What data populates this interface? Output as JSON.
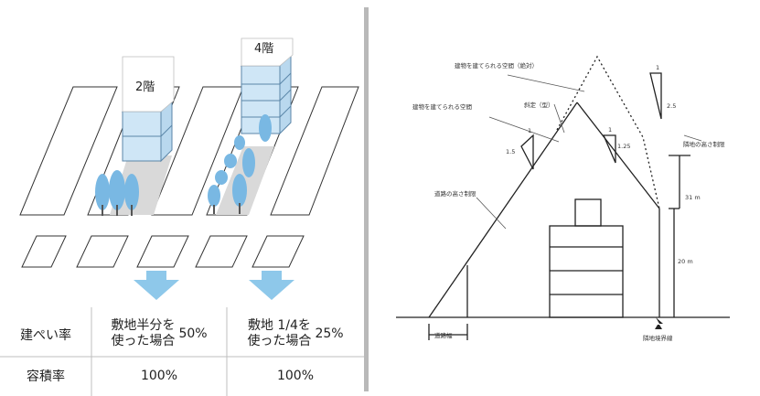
{
  "left_diagram": {
    "building_a_label": "2階",
    "building_b_label": "4階",
    "colors": {
      "building": "#cfe6f6",
      "building_stroke": "#5b86a8",
      "tree": "#79b8e3",
      "arrow": "#8ec8ea",
      "ground": "#d9d9d9"
    }
  },
  "table": {
    "row1_header": "建ぺい率",
    "row2_header": "容積率",
    "col1": {
      "text_line1": "敷地半分を",
      "text_line2": "使った場合",
      "coverage": "50%",
      "floor_ratio": "100%"
    },
    "col2": {
      "text_line1": "敷地 1/4を",
      "text_line2": "使った場合",
      "coverage": "25%",
      "floor_ratio": "100%"
    }
  },
  "right_diagram": {
    "label_buildable_absolute": "建物を建てられる空間（絶対）",
    "label_buildable": "建物を建てられる空間",
    "label_setback": "斜定（型）",
    "label_road_height": "道路の高さ制限",
    "label_north_height": "隣地の高さ制限",
    "ratio_slope_top": "1",
    "ratio_slope_top_val": "2.5",
    "ratio_left_top": "1",
    "ratio_left_val": "1.5",
    "ratio_mid_top": "1",
    "ratio_mid_val": "1.25",
    "dim_31": "31 m",
    "dim_20": "20 m",
    "label_road_width": "道路幅",
    "label_boundary": "隣地境界線"
  }
}
